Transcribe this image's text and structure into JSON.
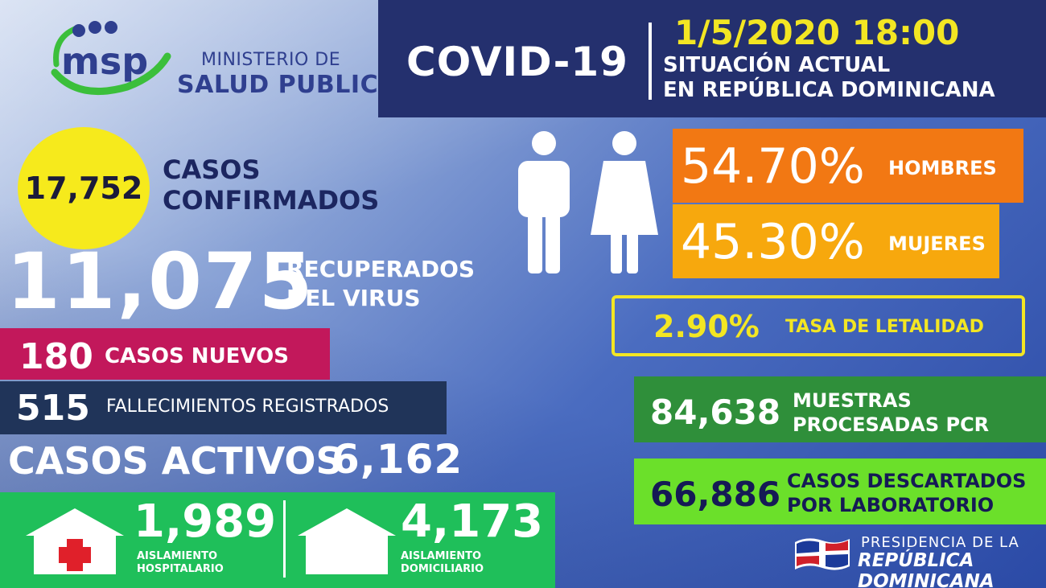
{
  "logo": {
    "acronym": "msp",
    "ministry_line1": "MINISTERIO DE",
    "ministry_line2": "SALUD PUBLICA"
  },
  "header": {
    "title": "COVID-19",
    "date": "1/5/2020 18:00",
    "subtitle_line1": "SITUACIÓN ACTUAL",
    "subtitle_line2": "EN REPÚBLICA DOMINICANA"
  },
  "confirmed": {
    "value": "17,752",
    "label_line1": "CASOS",
    "label_line2": "CONFIRMADOS"
  },
  "recovered": {
    "value": "11,075",
    "label_line1": "RECUPERADOS",
    "label_line2": "DEL VIRUS"
  },
  "new_cases": {
    "value": "180",
    "label": "CASOS NUEVOS"
  },
  "deaths": {
    "value": "515",
    "label": "FALLECIMIENTOS REGISTRADOS"
  },
  "active": {
    "label": "CASOS ACTIVOS",
    "value": "6,162"
  },
  "isolation": {
    "hospital": {
      "value": "1,989",
      "label_line1": "AISLAMIENTO",
      "label_line2": "HOSPITALARIO",
      "icon": "hospital-house-icon"
    },
    "home": {
      "value": "4,173",
      "label_line1": "AISLAMIENTO",
      "label_line2": "DOMICILIARIO",
      "icon": "house-icon"
    }
  },
  "gender": {
    "men": {
      "value": "54.70%",
      "label": "HOMBRES",
      "icon": "man-icon"
    },
    "women": {
      "value": "45.30%",
      "label": "MUJERES",
      "icon": "woman-icon"
    }
  },
  "lethality": {
    "value": "2.90%",
    "label": "TASA DE LETALIDAD"
  },
  "pcr": {
    "value": "84,638",
    "label_line1": "MUESTRAS",
    "label_line2": "PROCESADAS PCR"
  },
  "discarded": {
    "value": "66,886",
    "label_line1": "CASOS DESCARTADOS",
    "label_line2": "POR LABORATORIO"
  },
  "presidency": {
    "line1": "PRESIDENCIA DE LA",
    "line2": "REPÚBLICA DOMINICANA",
    "icon": "dominican-flag-icon"
  },
  "colors": {
    "header_bg": "#24306e",
    "yellow": "#f3e623",
    "new_cases_bg": "#c2185b",
    "deaths_bg": "#203459",
    "isolation_bg": "#1fbf5a",
    "men_bg": "#f27813",
    "women_bg": "#f7a80d",
    "pcr_bg": "#2f8f3a",
    "discarded_bg": "#6be02a"
  }
}
